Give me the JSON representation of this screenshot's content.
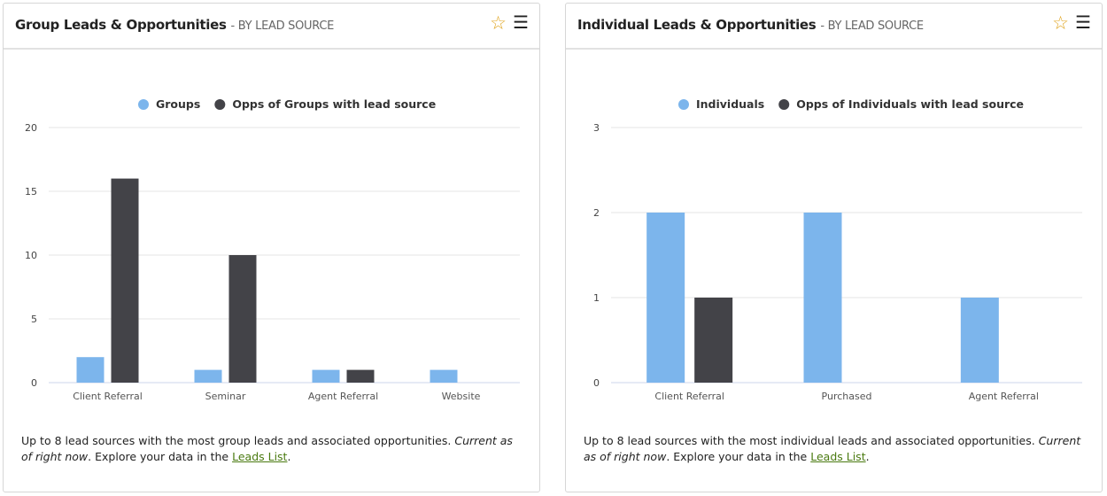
{
  "panels": [
    {
      "title": "Group Leads & Opportunities",
      "subtitle": "- BY LEAD SOURCE",
      "footer_text": "Up to 8 lead sources with the most group leads and associated opportunities.",
      "footer_italic": "Current as of right now",
      "footer_text2": "Explore your data in the",
      "link": "Leads List"
    },
    {
      "title": "Individual Leads & Opportunities",
      "subtitle": "- BY LEAD SOURCE",
      "footer_text": "Up to 8 lead sources with the most individual leads and associated opportunities.",
      "footer_italic": "Current as of right now",
      "footer_text2": "Explore your data in the",
      "link": "Leads List"
    }
  ],
  "colors": {
    "leads": "#7cb5ec",
    "opps": "#434348"
  },
  "chart_data": [
    {
      "type": "bar",
      "categories": [
        "Client Referral",
        "Seminar",
        "Agent Referral",
        "Website"
      ],
      "series": [
        {
          "name": "Groups",
          "values": [
            2,
            1,
            1,
            1
          ]
        },
        {
          "name": "Opps of Groups with lead source",
          "values": [
            16,
            10,
            1,
            0
          ]
        }
      ],
      "yticks": [
        0,
        5,
        10,
        15,
        20
      ],
      "ylim": [
        0,
        20
      ],
      "grid": true,
      "legend": "top"
    },
    {
      "type": "bar",
      "categories": [
        "Client Referral",
        "Purchased",
        "Agent Referral"
      ],
      "series": [
        {
          "name": "Individuals",
          "values": [
            2,
            2,
            1
          ]
        },
        {
          "name": "Opps of Individuals with lead source",
          "values": [
            1,
            0,
            0
          ]
        }
      ],
      "yticks": [
        0,
        1,
        2,
        3
      ],
      "ylim": [
        0,
        3
      ],
      "grid": true,
      "legend": "top"
    }
  ]
}
